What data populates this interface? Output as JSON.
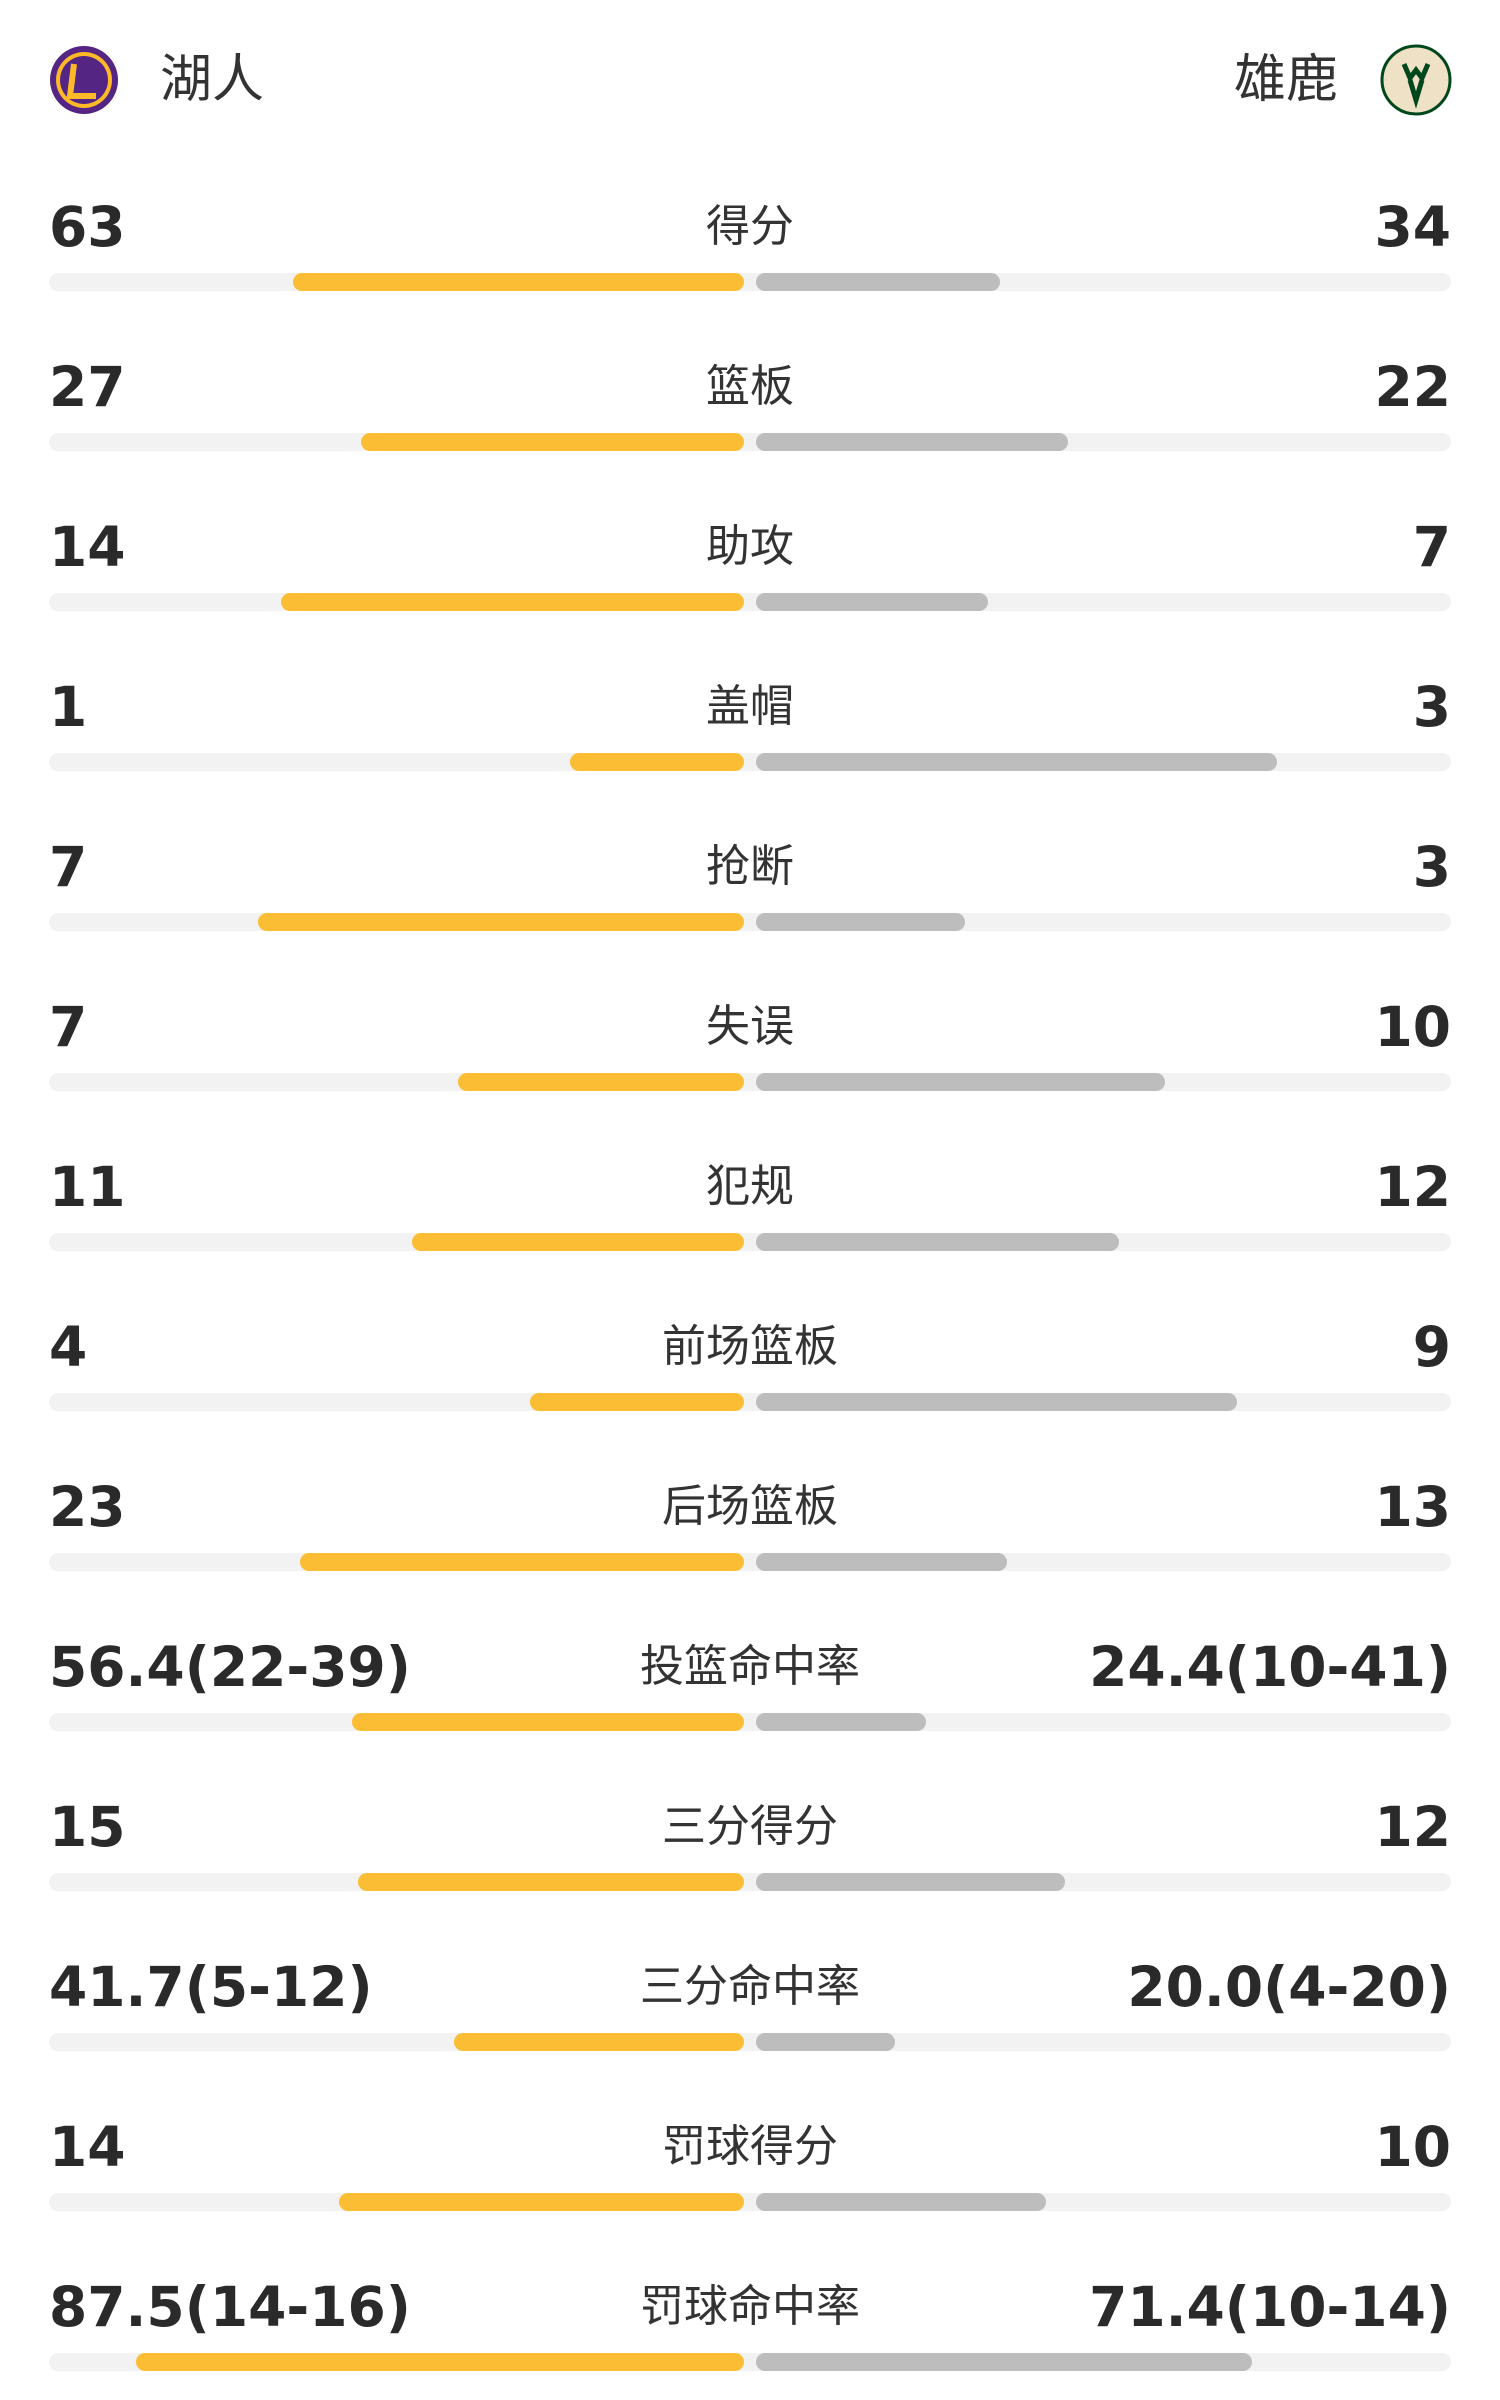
{
  "header": {
    "home": "湖人",
    "away": "雄鹿"
  },
  "rows": [
    {
      "label": "得分",
      "home": 63,
      "away": 34
    },
    {
      "label": "篮板",
      "home": 27,
      "away": 22
    },
    {
      "label": "助攻",
      "home": 14,
      "away": 7
    },
    {
      "label": "盖帽",
      "home": 1,
      "away": 3
    },
    {
      "label": "抢断",
      "home": 7,
      "away": 3
    },
    {
      "label": "失误",
      "home": 7,
      "away": 10
    },
    {
      "label": "犯规",
      "home": 11,
      "away": 12
    },
    {
      "label": "前场篮板",
      "home": 4,
      "away": 9
    },
    {
      "label": "后场篮板",
      "home": 23,
      "away": 13
    },
    {
      "label": "投篮命中率",
      "home": {
        "value": 56.4,
        "label": "56.4(22-39)"
      },
      "away": {
        "value": 24.4,
        "label": "24.4(10-41)"
      }
    },
    {
      "label": "三分得分",
      "home": 15,
      "away": 12
    },
    {
      "label": "三分命中率",
      "home": {
        "value": 41.7,
        "label": "41.7(5-12)"
      },
      "away": {
        "value": 20.0,
        "label": "20.0(4-20)"
      }
    },
    {
      "label": "罚球得分",
      "home": 14,
      "away": 10
    },
    {
      "label": "罚球命中率",
      "home": {
        "value": 87.5,
        "label": "87.5(14-16)"
      },
      "away": {
        "value": 71.4,
        "label": "71.4(10-14)"
      }
    }
  ]
}
